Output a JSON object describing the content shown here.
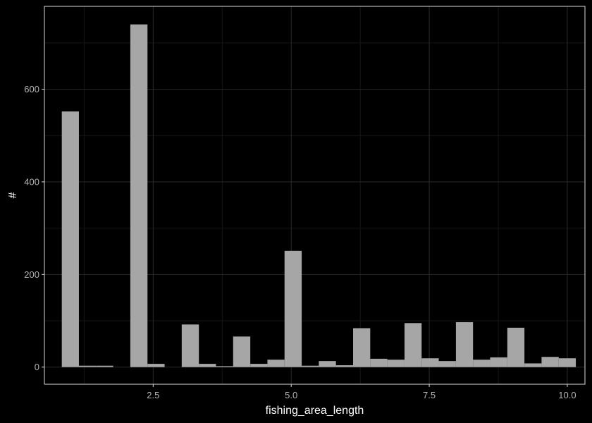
{
  "chart_data": {
    "type": "bar",
    "xlabel": "fishing_area_length",
    "ylabel": "#",
    "xlim": [
      0.53,
      10.32
    ],
    "ylim": [
      -37,
      779
    ],
    "x_ticks": [
      2.5,
      5.0,
      7.5,
      10.0
    ],
    "x_tick_labels": [
      "2.5",
      "5.0",
      "7.5",
      "10.0"
    ],
    "y_ticks": [
      0,
      200,
      400,
      600
    ],
    "y_tick_labels": [
      "0",
      "200",
      "400",
      "600"
    ],
    "grid": true,
    "bin_width": 0.3103,
    "bins": [
      {
        "x_start": 0.845,
        "x_end": 1.155,
        "count": 552
      },
      {
        "x_start": 1.155,
        "x_end": 1.466,
        "count": 3
      },
      {
        "x_start": 1.466,
        "x_end": 1.776,
        "count": 3
      },
      {
        "x_start": 1.776,
        "x_end": 2.086,
        "count": 0
      },
      {
        "x_start": 2.086,
        "x_end": 2.397,
        "count": 740
      },
      {
        "x_start": 2.397,
        "x_end": 2.707,
        "count": 7
      },
      {
        "x_start": 2.707,
        "x_end": 3.017,
        "count": 0
      },
      {
        "x_start": 3.017,
        "x_end": 3.328,
        "count": 92
      },
      {
        "x_start": 3.328,
        "x_end": 3.638,
        "count": 7
      },
      {
        "x_start": 3.638,
        "x_end": 3.948,
        "count": 2
      },
      {
        "x_start": 3.948,
        "x_end": 4.259,
        "count": 66
      },
      {
        "x_start": 4.259,
        "x_end": 4.569,
        "count": 7
      },
      {
        "x_start": 4.569,
        "x_end": 4.879,
        "count": 16
      },
      {
        "x_start": 4.879,
        "x_end": 5.19,
        "count": 251
      },
      {
        "x_start": 5.19,
        "x_end": 5.5,
        "count": 3
      },
      {
        "x_start": 5.5,
        "x_end": 5.81,
        "count": 13
      },
      {
        "x_start": 5.81,
        "x_end": 6.121,
        "count": 4
      },
      {
        "x_start": 6.121,
        "x_end": 6.431,
        "count": 84
      },
      {
        "x_start": 6.431,
        "x_end": 6.741,
        "count": 18
      },
      {
        "x_start": 6.741,
        "x_end": 7.052,
        "count": 16
      },
      {
        "x_start": 7.052,
        "x_end": 7.362,
        "count": 95
      },
      {
        "x_start": 7.362,
        "x_end": 7.672,
        "count": 19
      },
      {
        "x_start": 7.672,
        "x_end": 7.983,
        "count": 13
      },
      {
        "x_start": 7.983,
        "x_end": 8.293,
        "count": 97
      },
      {
        "x_start": 8.293,
        "x_end": 8.603,
        "count": 16
      },
      {
        "x_start": 8.603,
        "x_end": 8.914,
        "count": 21
      },
      {
        "x_start": 8.914,
        "x_end": 9.224,
        "count": 85
      },
      {
        "x_start": 9.224,
        "x_end": 9.534,
        "count": 8
      },
      {
        "x_start": 9.534,
        "x_end": 9.845,
        "count": 22
      },
      {
        "x_start": 9.845,
        "x_end": 10.155,
        "count": 19
      }
    ]
  },
  "colors": {
    "background": "#000000",
    "panel_border": "#d9d9d9",
    "grid_major": "#2a2a2a",
    "grid_minor": "#161616",
    "bar_fill": "#a6a6a6",
    "tick_text": "#b3b3b3",
    "axis_title": "#ffffff"
  }
}
